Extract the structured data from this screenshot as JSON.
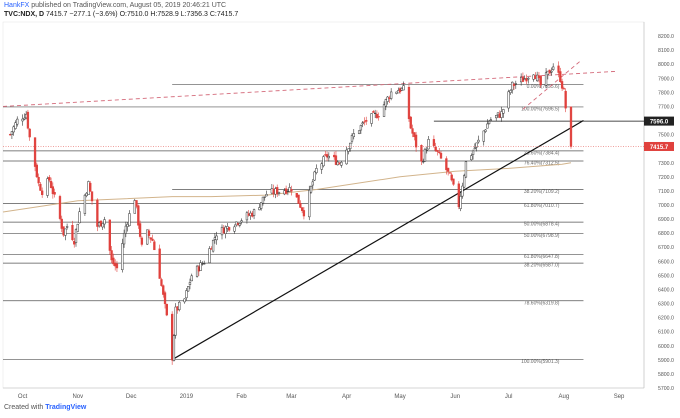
{
  "header": {
    "publisher": "HankFX",
    "published_text": "published on TradingView.com, August 05, 2019 20:46:21 UTC",
    "symbol": "TVC:NDX, D",
    "ohlc_text": "7415.7 −277.1 (−3.6%) O:7510.0 H:7528.9 L:7356.3 C:7415.7"
  },
  "footer": {
    "created_with": "Created with",
    "brand": "TradingView"
  },
  "chart_data": {
    "type": "candlestick",
    "title": "",
    "xlabel": "",
    "ylabel": "",
    "ylim": [
      5700,
      8300
    ],
    "y_ticks": [
      5700,
      5800,
      5900,
      6000,
      6100,
      6200,
      6300,
      6400,
      6500,
      6600,
      6700,
      6800,
      6900,
      7000,
      7100,
      7200,
      7300,
      7400,
      7500,
      7600,
      7700,
      7800,
      7900,
      8000,
      8100,
      8200
    ],
    "x_ticks": [
      {
        "label": "Oct",
        "date": "2018-10-01"
      },
      {
        "label": "Nov",
        "date": "2018-11-01"
      },
      {
        "label": "Dec",
        "date": "2018-12-01"
      },
      {
        "label": "2019",
        "date": "2019-01-01"
      },
      {
        "label": "Feb",
        "date": "2019-02-01"
      },
      {
        "label": "Mar",
        "date": "2019-03-01"
      },
      {
        "label": "Apr",
        "date": "2019-04-01"
      },
      {
        "label": "May",
        "date": "2019-05-01"
      },
      {
        "label": "Jun",
        "date": "2019-06-01"
      },
      {
        "label": "Jul",
        "date": "2019-07-01"
      },
      {
        "label": "Aug",
        "date": "2019-08-01"
      },
      {
        "label": "Sep",
        "date": "2019-09-01"
      }
    ],
    "x_range": [
      "2018-09-20",
      "2019-09-15"
    ],
    "colors": {
      "up": "#333333",
      "down": "#e0413d",
      "price_line": "#e0413d",
      "label_dark": "#222222",
      "ma": "#d2b48c",
      "fib_line": "#555555",
      "trend": "#111111"
    },
    "last_price": 7415.7,
    "price_label": 7415.7,
    "level_label": {
      "value": 7596.0,
      "label": "7596.0"
    },
    "fib_levels": [
      {
        "label": "0.00%(7855.6)",
        "value": 7855.6,
        "start": "2018-12-24"
      },
      {
        "label": "100.00%(7696.5)",
        "value": 7696.5,
        "start": "2018-09-20"
      },
      {
        "label": "23.60%(7384.4)",
        "value": 7384.4,
        "start": "2018-09-20"
      },
      {
        "label": "76.40%(7312.5)",
        "value": 7312.5,
        "start": "2018-09-20"
      },
      {
        "label": "38.20%(7109.2)",
        "value": 7109.2,
        "start": "2018-12-24"
      },
      {
        "label": "61.80%(7010.7)",
        "value": 7010.7,
        "start": "2018-09-20"
      },
      {
        "label": "50.00%(6878.4)",
        "value": 6878.4,
        "start": "2018-09-20"
      },
      {
        "label": "50.00%(6798.9)",
        "value": 6798.9,
        "start": "2018-09-20"
      },
      {
        "label": "61.80%(6647.8)",
        "value": 6647.8,
        "start": "2018-09-20"
      },
      {
        "label": "38.20%(6587.0)",
        "value": 6587.0,
        "start": "2018-09-20"
      },
      {
        "label": "78.60%(6319.8)",
        "value": 6319.8,
        "start": "2018-09-20"
      },
      {
        "label": "100.00%(5901.3)",
        "value": 5901.3,
        "start": "2018-09-20"
      }
    ],
    "fib_level_end": "2019-08-12",
    "horizontal_line": {
      "value": 7596.0,
      "start": "2019-05-20"
    },
    "trend_line": {
      "x1": "2018-12-24",
      "y1": 5901,
      "x2": "2019-08-12",
      "y2": 7600
    },
    "dashed_line": {
      "x1": "2018-09-20",
      "y1": 7700,
      "x2": "2019-08-31",
      "y2": 7950
    },
    "dashed_line2": {
      "x1": "2019-07-09",
      "y1": 7680,
      "x2": "2019-08-10",
      "y2": 8020
    },
    "ma_points": [
      [
        "2018-09-20",
        6950
      ],
      [
        "2018-11-01",
        7030
      ],
      [
        "2018-12-24",
        7060
      ],
      [
        "2019-01-15",
        7060
      ],
      [
        "2019-02-15",
        7070
      ],
      [
        "2019-03-15",
        7110
      ],
      [
        "2019-05-01",
        7200
      ],
      [
        "2019-06-01",
        7240
      ],
      [
        "2019-07-01",
        7260
      ],
      [
        "2019-07-31",
        7290
      ],
      [
        "2019-08-05",
        7300
      ]
    ],
    "candle_anchors": [
      [
        "2018-09-24",
        7500
      ],
      [
        "2018-09-28",
        7600
      ],
      [
        "2018-10-03",
        7650
      ],
      [
        "2018-10-05",
        7480
      ],
      [
        "2018-10-10",
        7150
      ],
      [
        "2018-10-12",
        7100
      ],
      [
        "2018-10-16",
        7180
      ],
      [
        "2018-10-19",
        7050
      ],
      [
        "2018-10-24",
        6800
      ],
      [
        "2018-10-26",
        6850
      ],
      [
        "2018-10-30",
        6750
      ],
      [
        "2018-11-02",
        6950
      ],
      [
        "2018-11-07",
        7150
      ],
      [
        "2018-11-12",
        6850
      ],
      [
        "2018-11-16",
        6900
      ],
      [
        "2018-11-20",
        6600
      ],
      [
        "2018-11-23",
        6550
      ],
      [
        "2018-11-28",
        6850
      ],
      [
        "2018-12-03",
        7050
      ],
      [
        "2018-12-07",
        6700
      ],
      [
        "2018-12-10",
        6800
      ],
      [
        "2018-12-13",
        6750
      ],
      [
        "2018-12-17",
        6500
      ],
      [
        "2018-12-21",
        6200
      ],
      [
        "2018-12-24",
        5920
      ],
      [
        "2018-12-26",
        6250
      ],
      [
        "2018-12-31",
        6330
      ],
      [
        "2019-01-04",
        6500
      ],
      [
        "2019-01-11",
        6600
      ],
      [
        "2019-01-18",
        6800
      ],
      [
        "2019-01-25",
        6850
      ],
      [
        "2019-02-01",
        6900
      ],
      [
        "2019-02-08",
        6950
      ],
      [
        "2019-02-15",
        7080
      ],
      [
        "2019-02-22",
        7100
      ],
      [
        "2019-03-01",
        7120
      ],
      [
        "2019-03-08",
        6950
      ],
      [
        "2019-03-15",
        7250
      ],
      [
        "2019-03-21",
        7350
      ],
      [
        "2019-03-28",
        7300
      ],
      [
        "2019-04-05",
        7500
      ],
      [
        "2019-04-12",
        7600
      ],
      [
        "2019-04-19",
        7650
      ],
      [
        "2019-04-26",
        7800
      ],
      [
        "2019-04-30",
        7820
      ],
      [
        "2019-05-03",
        7820
      ],
      [
        "2019-05-07",
        7550
      ],
      [
        "2019-05-13",
        7300
      ],
      [
        "2019-05-17",
        7450
      ],
      [
        "2019-05-23",
        7350
      ],
      [
        "2019-05-29",
        7200
      ],
      [
        "2019-06-03",
        7000
      ],
      [
        "2019-06-07",
        7300
      ],
      [
        "2019-06-14",
        7450
      ],
      [
        "2019-06-20",
        7600
      ],
      [
        "2019-06-27",
        7650
      ],
      [
        "2019-07-03",
        7850
      ],
      [
        "2019-07-10",
        7900
      ],
      [
        "2019-07-15",
        7950
      ],
      [
        "2019-07-19",
        7850
      ],
      [
        "2019-07-26",
        7990
      ],
      [
        "2019-07-30",
        7900
      ],
      [
        "2019-08-01",
        7800
      ],
      [
        "2019-08-02",
        7693
      ],
      [
        "2019-08-05",
        7416
      ]
    ]
  }
}
